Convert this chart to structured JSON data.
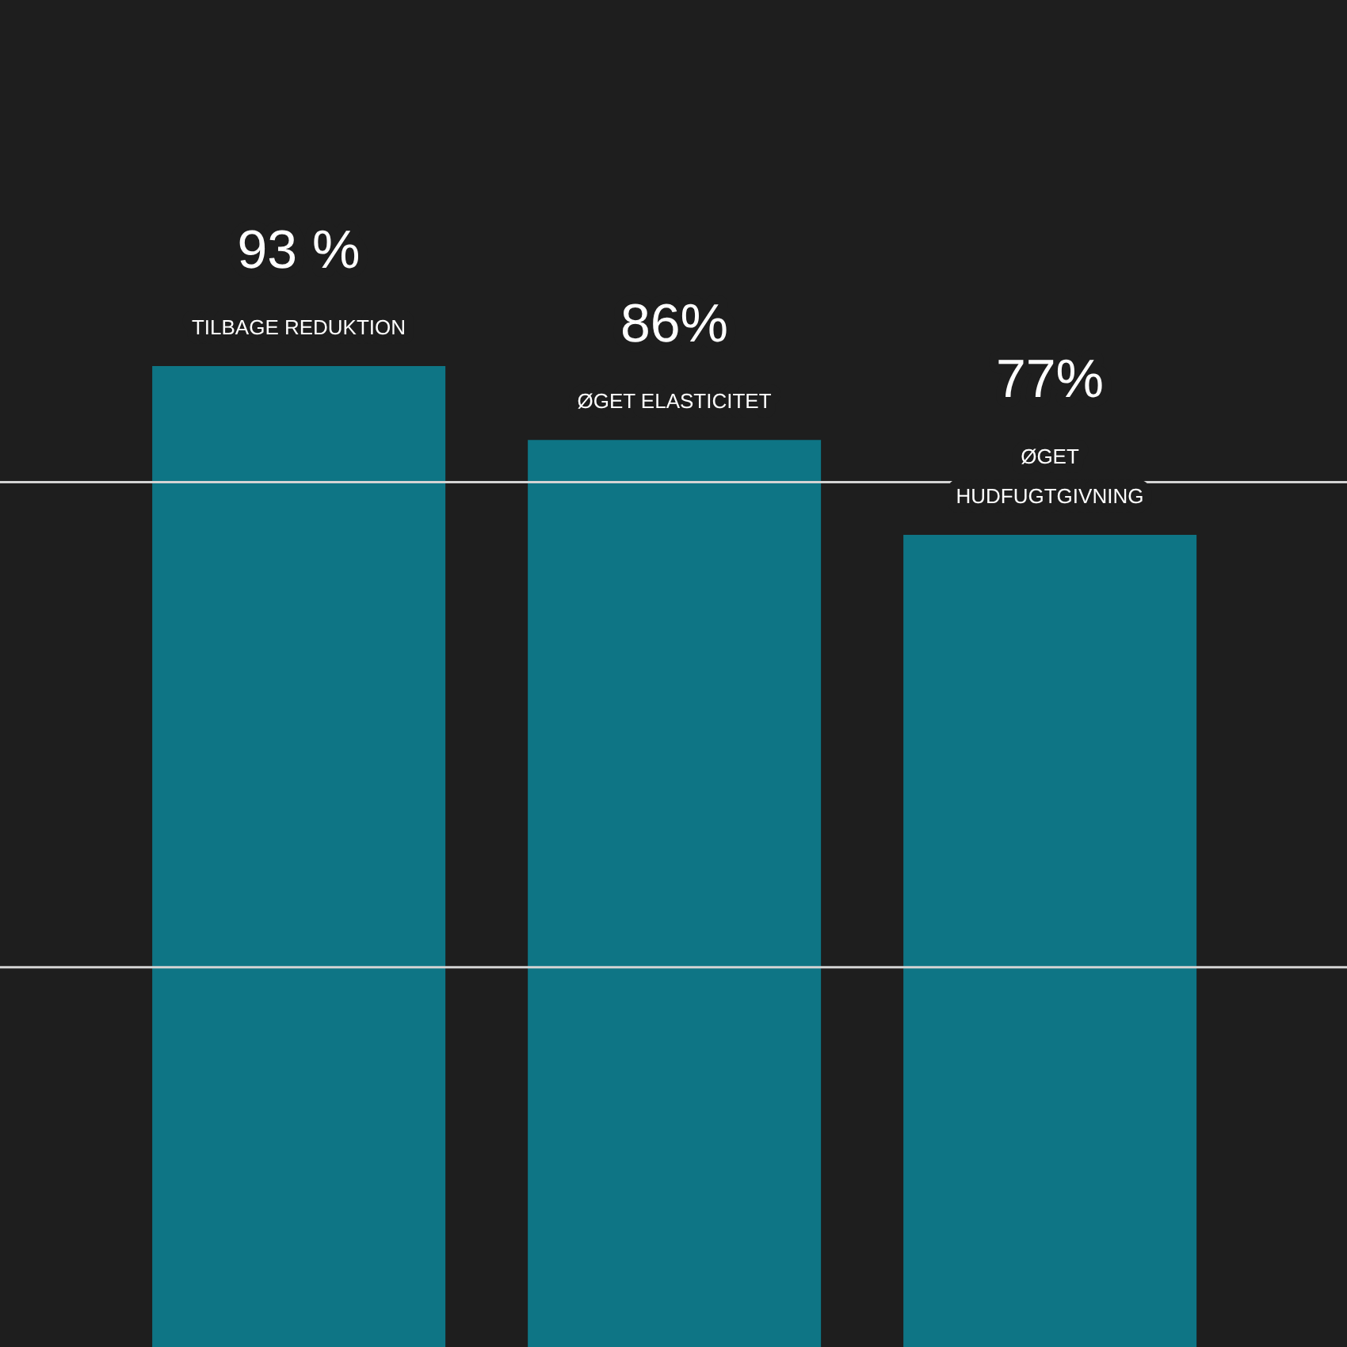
{
  "chart_data": {
    "type": "bar",
    "categories": [
      "TILBAGE REDUKTION",
      "ØGET ELASTICITET",
      "ØGET HUDFUGTGIVNING"
    ],
    "values": [
      93,
      86,
      77
    ],
    "color": "#0e7585",
    "value_labels": [
      "93 %",
      "86%",
      "77%"
    ],
    "ref_lines": [
      {
        "axis": "y",
        "value": 82,
        "color": "#d4d4d4"
      },
      {
        "axis": "y",
        "value": 36,
        "color": "#d4d4d4"
      }
    ],
    "tick_labels": "x"
  }
}
